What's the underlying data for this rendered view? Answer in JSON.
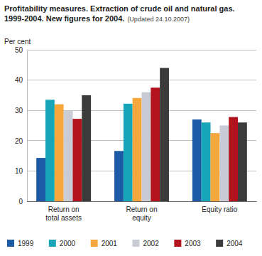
{
  "chart_data": {
    "type": "bar",
    "title": "Profitability measures. Extraction of crude oil and natural gas. 1999-2004. New figures for 2004.",
    "subtitle": "(Updated 24.10.2007)",
    "y_label": "Per cent",
    "categories": [
      "Return on total assets",
      "Return on equity",
      "Equity ratio"
    ],
    "series": [
      {
        "name": "1999",
        "color": "#1c5aa6",
        "values": [
          14.3,
          16.6,
          27
        ]
      },
      {
        "name": "2000",
        "color": "#17a6b8",
        "values": [
          33.5,
          32.2,
          26
        ]
      },
      {
        "name": "2001",
        "color": "#f5a73b",
        "values": [
          32,
          34.1,
          22.5
        ]
      },
      {
        "name": "2002",
        "color": "#c9cbd5",
        "values": [
          30,
          36,
          25
        ]
      },
      {
        "name": "2003",
        "color": "#b3131c",
        "values": [
          27.2,
          37.5,
          27.8
        ]
      },
      {
        "name": "2004",
        "color": "#3b3b3b",
        "values": [
          35,
          44,
          26
        ]
      }
    ],
    "ylim": [
      0,
      50
    ],
    "yticks": [
      0,
      10,
      20,
      30,
      40,
      50
    ],
    "grid": true,
    "legend": "bottom"
  }
}
